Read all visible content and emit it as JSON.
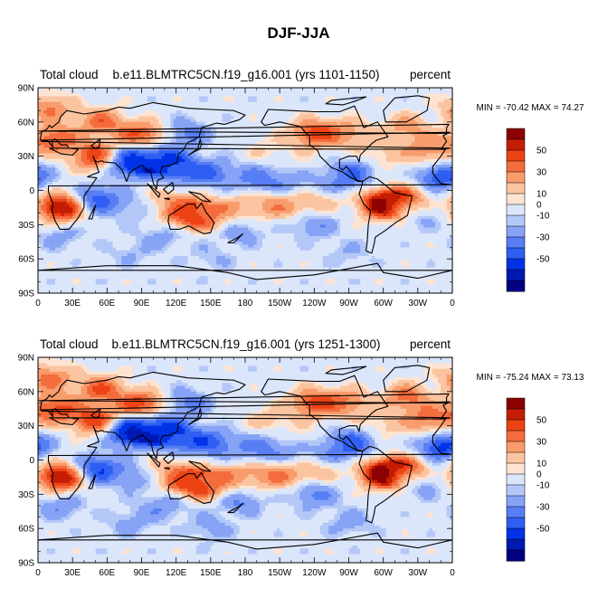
{
  "figure": {
    "title": "DJF-JJA"
  },
  "chart_data": [
    {
      "type": "heatmap",
      "variable": "Total cloud",
      "case": "b.e11.BLMTRC5CN.f19_g16.001 (yrs 1101-1150)",
      "units": "percent",
      "stats": "MIN = -70.42 MAX =  74.27",
      "min": -70.42,
      "max": 74.27,
      "x_ticks": [
        "0",
        "30E",
        "60E",
        "90E",
        "120E",
        "150E",
        "180",
        "150W",
        "120W",
        "90W",
        "60W",
        "30W",
        "0"
      ],
      "y_ticks": [
        "90N",
        "60N",
        "30N",
        "0",
        "30S",
        "60S",
        "90S"
      ],
      "lon_range": [
        0,
        360
      ],
      "lat_range": [
        -90,
        90
      ],
      "colorbar_labels": [
        "50",
        "30",
        "10",
        "0",
        "-10",
        "-30",
        "-50"
      ],
      "contour_levels": [
        -60,
        -50,
        -40,
        -30,
        -20,
        -10,
        -5,
        5,
        10,
        20,
        30,
        40,
        50,
        60
      ],
      "colors": [
        "#000080",
        "#0019b3",
        "#0033e6",
        "#2e5ef2",
        "#577ef4",
        "#86a3f5",
        "#b4c8f8",
        "#dbe6fb",
        "#fde4d2",
        "#fbc4a0",
        "#f89c6c",
        "#f46c3d",
        "#ec4214",
        "#c41d03",
        "#8b0000"
      ],
      "hotspots": [
        {
          "lon": 20,
          "lat": -15,
          "v": 70
        },
        {
          "lon": 50,
          "lat": 30,
          "v": 50
        },
        {
          "lon": 15,
          "lat": 45,
          "v": 40
        },
        {
          "lon": 90,
          "lat": 48,
          "v": 45
        },
        {
          "lon": 55,
          "lat": 60,
          "v": 35
        },
        {
          "lon": 110,
          "lat": -10,
          "v": 20
        },
        {
          "lon": 130,
          "lat": -20,
          "v": 55
        },
        {
          "lon": 150,
          "lat": -22,
          "v": 35
        },
        {
          "lon": 178,
          "lat": -15,
          "v": 20
        },
        {
          "lon": 210,
          "lat": -12,
          "v": 30
        },
        {
          "lon": 240,
          "lat": -8,
          "v": 25
        },
        {
          "lon": 300,
          "lat": -12,
          "v": 70
        },
        {
          "lon": 318,
          "lat": -10,
          "v": 50
        },
        {
          "lon": 240,
          "lat": 50,
          "v": 45
        },
        {
          "lon": 270,
          "lat": 50,
          "v": 25
        },
        {
          "lon": 320,
          "lat": 55,
          "v": 25
        },
        {
          "lon": 340,
          "lat": 35,
          "v": 30
        },
        {
          "lon": 10,
          "lat": 72,
          "v": 30
        },
        {
          "lon": 200,
          "lat": 35,
          "v": 10
        },
        {
          "lon": 230,
          "lat": 15,
          "v": 15
        },
        {
          "lon": 300,
          "lat": 30,
          "v": 15
        },
        {
          "lon": 50,
          "lat": -8,
          "v": -40
        },
        {
          "lon": 80,
          "lat": 25,
          "v": -55
        },
        {
          "lon": 100,
          "lat": 27,
          "v": -45
        },
        {
          "lon": 120,
          "lat": 20,
          "v": -40
        },
        {
          "lon": 150,
          "lat": 15,
          "v": -30
        },
        {
          "lon": 190,
          "lat": 10,
          "v": -25
        },
        {
          "lon": 220,
          "lat": 8,
          "v": -35
        },
        {
          "lon": 250,
          "lat": 8,
          "v": -25
        },
        {
          "lon": 275,
          "lat": 15,
          "v": -30
        },
        {
          "lon": 350,
          "lat": 12,
          "v": -40
        },
        {
          "lon": 130,
          "lat": 50,
          "v": -25
        },
        {
          "lon": 240,
          "lat": -30,
          "v": -20
        },
        {
          "lon": 175,
          "lat": -35,
          "v": -20
        },
        {
          "lon": 110,
          "lat": -40,
          "v": -15
        },
        {
          "lon": 20,
          "lat": -40,
          "v": -15
        },
        {
          "lon": 270,
          "lat": -55,
          "v": -10
        },
        {
          "lon": 80,
          "lat": -55,
          "v": -10
        },
        {
          "lon": 150,
          "lat": -60,
          "v": -10
        },
        {
          "lon": 330,
          "lat": -20,
          "v": -20
        },
        {
          "lon": 85,
          "lat": -15,
          "v": -15
        }
      ]
    },
    {
      "type": "heatmap",
      "variable": "Total cloud",
      "case": "b.e11.BLMTRC5CN.f19_g16.001 (yrs 1251-1300)",
      "units": "percent",
      "stats": "MIN = -75.24 MAX =  73.13",
      "min": -75.24,
      "max": 73.13,
      "x_ticks": [
        "0",
        "30E",
        "60E",
        "90E",
        "120E",
        "150E",
        "180",
        "150W",
        "120W",
        "90W",
        "60W",
        "30W",
        "0"
      ],
      "y_ticks": [
        "90N",
        "60N",
        "30N",
        "0",
        "30S",
        "60S",
        "90S"
      ],
      "lon_range": [
        0,
        360
      ],
      "lat_range": [
        -90,
        90
      ],
      "colorbar_labels": [
        "50",
        "30",
        "10",
        "0",
        "-10",
        "-30",
        "-50"
      ],
      "contour_levels": [
        -60,
        -50,
        -40,
        -30,
        -20,
        -10,
        -5,
        5,
        10,
        20,
        30,
        40,
        50,
        60
      ],
      "colors": [
        "#000080",
        "#0019b3",
        "#0033e6",
        "#2e5ef2",
        "#577ef4",
        "#86a3f5",
        "#b4c8f8",
        "#dbe6fb",
        "#fde4d2",
        "#fbc4a0",
        "#f89c6c",
        "#f46c3d",
        "#ec4214",
        "#c41d03",
        "#8b0000"
      ],
      "hotspots": [
        {
          "lon": 20,
          "lat": -15,
          "v": 70
        },
        {
          "lon": 50,
          "lat": 35,
          "v": 50
        },
        {
          "lon": 15,
          "lat": 45,
          "v": 45
        },
        {
          "lon": 90,
          "lat": 48,
          "v": 50
        },
        {
          "lon": 55,
          "lat": 62,
          "v": 40
        },
        {
          "lon": 110,
          "lat": -10,
          "v": 20
        },
        {
          "lon": 130,
          "lat": -18,
          "v": 55
        },
        {
          "lon": 150,
          "lat": -22,
          "v": 40
        },
        {
          "lon": 178,
          "lat": -15,
          "v": 25
        },
        {
          "lon": 210,
          "lat": -12,
          "v": 35
        },
        {
          "lon": 240,
          "lat": -8,
          "v": 25
        },
        {
          "lon": 300,
          "lat": -12,
          "v": 72
        },
        {
          "lon": 318,
          "lat": -10,
          "v": 55
        },
        {
          "lon": 240,
          "lat": 50,
          "v": 45
        },
        {
          "lon": 270,
          "lat": 50,
          "v": 30
        },
        {
          "lon": 320,
          "lat": 55,
          "v": 35
        },
        {
          "lon": 340,
          "lat": 35,
          "v": 35
        },
        {
          "lon": 10,
          "lat": 72,
          "v": 35
        },
        {
          "lon": 200,
          "lat": 35,
          "v": 15
        },
        {
          "lon": 230,
          "lat": 15,
          "v": 20
        },
        {
          "lon": 300,
          "lat": 30,
          "v": 15
        },
        {
          "lon": 50,
          "lat": -8,
          "v": -45
        },
        {
          "lon": 80,
          "lat": 25,
          "v": -60
        },
        {
          "lon": 100,
          "lat": 27,
          "v": -50
        },
        {
          "lon": 120,
          "lat": 20,
          "v": -40
        },
        {
          "lon": 150,
          "lat": 15,
          "v": -35
        },
        {
          "lon": 190,
          "lat": 10,
          "v": -25
        },
        {
          "lon": 220,
          "lat": 8,
          "v": -35
        },
        {
          "lon": 250,
          "lat": 8,
          "v": -30
        },
        {
          "lon": 275,
          "lat": 15,
          "v": -35
        },
        {
          "lon": 350,
          "lat": 12,
          "v": -45
        },
        {
          "lon": 130,
          "lat": 50,
          "v": -25
        },
        {
          "lon": 240,
          "lat": -30,
          "v": -25
        },
        {
          "lon": 175,
          "lat": -35,
          "v": -25
        },
        {
          "lon": 110,
          "lat": -40,
          "v": -20
        },
        {
          "lon": 20,
          "lat": -40,
          "v": -20
        },
        {
          "lon": 270,
          "lat": -55,
          "v": -15
        },
        {
          "lon": 80,
          "lat": -55,
          "v": -15
        },
        {
          "lon": 150,
          "lat": -60,
          "v": -15
        },
        {
          "lon": 330,
          "lat": -20,
          "v": -25
        },
        {
          "lon": 85,
          "lat": -15,
          "v": -20
        }
      ]
    }
  ]
}
